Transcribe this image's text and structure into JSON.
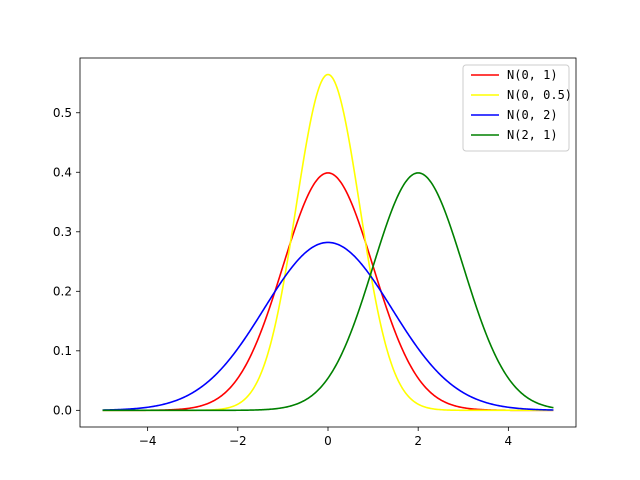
{
  "chart_data": {
    "type": "line",
    "title": "",
    "xlabel": "",
    "ylabel": "",
    "xlim": [
      -5.5,
      5.5
    ],
    "ylim": [
      -0.028,
      0.592
    ],
    "xticks": [
      -4,
      -2,
      0,
      2,
      4
    ],
    "xtick_labels": [
      "−4",
      "−2",
      "0",
      "2",
      "4"
    ],
    "yticks": [
      0.0,
      0.1,
      0.2,
      0.3,
      0.4,
      0.5
    ],
    "ytick_labels": [
      "0.0",
      "0.1",
      "0.2",
      "0.3",
      "0.4",
      "0.5"
    ],
    "x_domain": [
      -5,
      5
    ],
    "grid": false,
    "legend_position": "top-right",
    "series": [
      {
        "name": "N(0, 1)",
        "distribution": "normal",
        "mu": 0,
        "sigma": 1,
        "peak": 0.399,
        "color": "#ff0000"
      },
      {
        "name": "N(0, 0.5)",
        "distribution": "normal",
        "mu": 0,
        "sigma": 0.707,
        "peak": 0.564,
        "color": "#ffff00"
      },
      {
        "name": "N(0, 2)",
        "distribution": "normal",
        "mu": 0,
        "sigma": 1.414,
        "peak": 0.282,
        "color": "#0000ff"
      },
      {
        "name": "N(2, 1)",
        "distribution": "normal",
        "mu": 2,
        "sigma": 1,
        "peak": 0.399,
        "color": "#008000"
      }
    ]
  }
}
